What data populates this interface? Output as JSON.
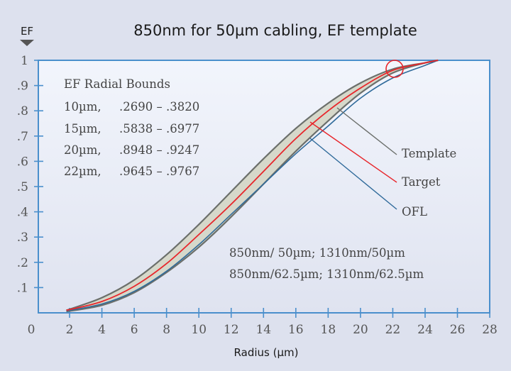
{
  "chart_data": {
    "type": "line",
    "title": "850nm for 50µm cabling, EF template",
    "xlabel": "Radius (µm)",
    "ylabel": "EF",
    "xlim": [
      0,
      28
    ],
    "ylim": [
      0,
      1
    ],
    "x_ticks": [
      "0",
      "2",
      "4",
      "6",
      "8",
      "10",
      "12",
      "14",
      "16",
      "18",
      "20",
      "22",
      "24",
      "26",
      "28"
    ],
    "y_ticks": [
      "0",
      ".1",
      ".2",
      ".3",
      ".4",
      ".5",
      ".6",
      ".7",
      ".8",
      ".9",
      "1"
    ],
    "grid": false,
    "x": [
      1.8,
      4,
      6,
      8,
      10,
      12,
      14,
      16,
      18,
      20,
      22,
      24,
      24.8
    ],
    "series": [
      {
        "name": "Template (upper bound)",
        "color": "#6b6f6b",
        "values": [
          0.01,
          0.06,
          0.13,
          0.23,
          0.35,
          0.48,
          0.61,
          0.73,
          0.83,
          0.91,
          0.965,
          0.99,
          1.0
        ]
      },
      {
        "name": "Template (lower bound)",
        "color": "#6b6f6b",
        "values": [
          0.005,
          0.03,
          0.08,
          0.16,
          0.26,
          0.38,
          0.51,
          0.64,
          0.76,
          0.87,
          0.95,
          0.99,
          1.0
        ]
      },
      {
        "name": "Target",
        "color": "#e8262b",
        "values": [
          0.01,
          0.045,
          0.105,
          0.195,
          0.31,
          0.43,
          0.56,
          0.69,
          0.8,
          0.89,
          0.96,
          0.99,
          1.0
        ]
      },
      {
        "name": "OFL",
        "color": "#2f6a9a",
        "values": [
          0.008,
          0.035,
          0.085,
          0.165,
          0.27,
          0.39,
          0.51,
          0.63,
          0.74,
          0.85,
          0.93,
          0.98,
          1.0
        ]
      }
    ],
    "template_fill": "#d6d8ca",
    "legend_labels": [
      "Template",
      "Target",
      "OFL"
    ],
    "annotations": {
      "bounds_title": "EF Radial Bounds",
      "bounds": [
        {
          "radius": "10µm,",
          "range": ".2690 – .3820"
        },
        {
          "radius": "15µm,",
          "range": ".5838 – .6977"
        },
        {
          "radius": "20µm,",
          "range": ".8948 – .9247"
        },
        {
          "radius": "22µm,",
          "range": ".9645 – .9767"
        }
      ],
      "applicability": [
        "850nm/ 50µm; 1310nm/50µm",
        "850nm/62.5µm; 1310nm/62.5µm"
      ],
      "highlight_circle": {
        "x": 22,
        "y": 0.965,
        "color": "#e8262b"
      }
    },
    "colors": {
      "axis": "#4a8fcc",
      "background": "#dde1ee",
      "plot_bg_top": "#f1f4fc",
      "plot_bg_bottom": "#e1e5f1"
    }
  }
}
